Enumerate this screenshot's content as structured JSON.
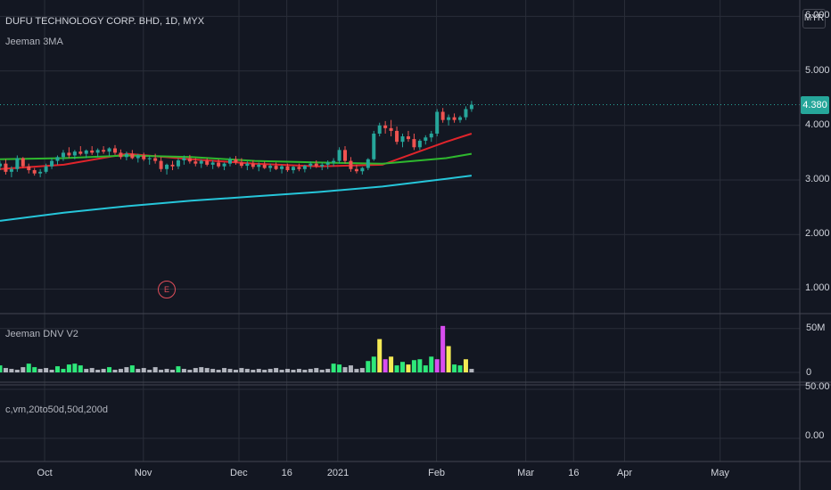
{
  "header": {
    "symbol_title": "DUFU TECHNOLOGY CORP. BHD, 1D, MYX",
    "main_indicator": "Jeeman 3MA",
    "currency": "MYR"
  },
  "price_axis": {
    "labels": [
      "6.000",
      "5.000",
      "4.000",
      "3.000",
      "2.000",
      "1.000"
    ],
    "values": [
      6,
      5,
      4,
      3,
      2,
      1
    ],
    "last_price": "4.380",
    "last_price_value": 4.38
  },
  "volume_pane": {
    "title": "Jeeman DNV V2",
    "axis_labels": [
      "50M",
      "0"
    ]
  },
  "third_pane": {
    "title": "c,vm,20to50d,50d,200d",
    "axis_labels": [
      "50.00",
      "0.00"
    ]
  },
  "time_axis": {
    "labels": [
      "Oct",
      "Nov",
      "Dec",
      "16",
      "2021",
      "Feb",
      "Mar",
      "16",
      "Apr",
      "May"
    ]
  },
  "earnings_marker": "E",
  "colors": {
    "background": "#131722",
    "grid": "#2a2e39",
    "up_candle": "#26a69a",
    "down_candle": "#ef5350",
    "ma_fast": "#e0242b",
    "ma_mid": "#2eb82e",
    "ma_slow": "#26c6da",
    "last_price": "#26a69a",
    "vol_gray": "#b2b5be",
    "vol_green": "#2ee87a",
    "vol_yellow": "#f5ea55",
    "vol_magenta": "#d94df0",
    "pane_separator": "#434651"
  },
  "chart_data": {
    "type": "candlestick",
    "title": "DUFU TECHNOLOGY CORP. BHD, 1D, MYX",
    "ylim": [
      0.55,
      6.3
    ],
    "x_range": [
      "2020-09-17",
      "2021-05-26"
    ],
    "candle_dates": [
      "2020-09-17",
      "2021-02-12"
    ],
    "candles": [
      [
        3.25,
        3.35,
        3.18,
        3.3
      ],
      [
        3.3,
        3.38,
        3.1,
        3.15
      ],
      [
        3.15,
        3.25,
        3.05,
        3.2
      ],
      [
        3.2,
        3.45,
        3.15,
        3.4
      ],
      [
        3.4,
        3.42,
        3.22,
        3.25
      ],
      [
        3.25,
        3.3,
        3.12,
        3.18
      ],
      [
        3.18,
        3.22,
        3.08,
        3.12
      ],
      [
        3.12,
        3.2,
        3.05,
        3.15
      ],
      [
        3.15,
        3.3,
        3.12,
        3.25
      ],
      [
        3.25,
        3.4,
        3.2,
        3.35
      ],
      [
        3.35,
        3.45,
        3.28,
        3.42
      ],
      [
        3.42,
        3.55,
        3.35,
        3.5
      ],
      [
        3.5,
        3.6,
        3.4,
        3.45
      ],
      [
        3.45,
        3.55,
        3.38,
        3.52
      ],
      [
        3.52,
        3.62,
        3.45,
        3.48
      ],
      [
        3.48,
        3.56,
        3.4,
        3.54
      ],
      [
        3.54,
        3.62,
        3.46,
        3.5
      ],
      [
        3.5,
        3.58,
        3.42,
        3.55
      ],
      [
        3.55,
        3.62,
        3.48,
        3.52
      ],
      [
        3.52,
        3.6,
        3.44,
        3.58
      ],
      [
        3.58,
        3.64,
        3.46,
        3.5
      ],
      [
        3.5,
        3.56,
        3.38,
        3.42
      ],
      [
        3.42,
        3.52,
        3.36,
        3.48
      ],
      [
        3.48,
        3.55,
        3.38,
        3.4
      ],
      [
        3.4,
        3.48,
        3.32,
        3.45
      ],
      [
        3.45,
        3.5,
        3.35,
        3.38
      ],
      [
        3.38,
        3.44,
        3.28,
        3.4
      ],
      [
        3.4,
        3.48,
        3.3,
        3.35
      ],
      [
        3.35,
        3.42,
        3.15,
        3.2
      ],
      [
        3.2,
        3.3,
        3.1,
        3.28
      ],
      [
        3.28,
        3.35,
        3.18,
        3.25
      ],
      [
        3.25,
        3.4,
        3.2,
        3.36
      ],
      [
        3.36,
        3.45,
        3.28,
        3.4
      ],
      [
        3.4,
        3.46,
        3.3,
        3.34
      ],
      [
        3.34,
        3.4,
        3.25,
        3.3
      ],
      [
        3.3,
        3.38,
        3.22,
        3.35
      ],
      [
        3.35,
        3.4,
        3.25,
        3.28
      ],
      [
        3.28,
        3.36,
        3.2,
        3.32
      ],
      [
        3.32,
        3.38,
        3.22,
        3.25
      ],
      [
        3.25,
        3.32,
        3.18,
        3.3
      ],
      [
        3.3,
        3.42,
        3.25,
        3.38
      ],
      [
        3.38,
        3.44,
        3.28,
        3.32
      ],
      [
        3.32,
        3.4,
        3.22,
        3.26
      ],
      [
        3.26,
        3.34,
        3.18,
        3.3
      ],
      [
        3.3,
        3.36,
        3.2,
        3.24
      ],
      [
        3.24,
        3.32,
        3.16,
        3.28
      ],
      [
        3.28,
        3.34,
        3.2,
        3.22
      ],
      [
        3.22,
        3.3,
        3.15,
        3.26
      ],
      [
        3.26,
        3.32,
        3.18,
        3.2
      ],
      [
        3.2,
        3.28,
        3.12,
        3.25
      ],
      [
        3.25,
        3.3,
        3.15,
        3.18
      ],
      [
        3.18,
        3.26,
        3.12,
        3.24
      ],
      [
        3.24,
        3.3,
        3.16,
        3.2
      ],
      [
        3.2,
        3.28,
        3.14,
        3.26
      ],
      [
        3.26,
        3.34,
        3.2,
        3.3
      ],
      [
        3.3,
        3.36,
        3.22,
        3.25
      ],
      [
        3.25,
        3.32,
        3.18,
        3.28
      ],
      [
        3.28,
        3.36,
        3.2,
        3.32
      ],
      [
        3.32,
        3.4,
        3.25,
        3.35
      ],
      [
        3.35,
        3.6,
        3.3,
        3.55
      ],
      [
        3.55,
        3.62,
        3.3,
        3.35
      ],
      [
        3.35,
        3.42,
        3.15,
        3.2
      ],
      [
        3.2,
        3.28,
        3.12,
        3.16
      ],
      [
        3.16,
        3.24,
        3.1,
        3.22
      ],
      [
        3.22,
        3.4,
        3.18,
        3.38
      ],
      [
        3.38,
        3.9,
        3.35,
        3.85
      ],
      [
        3.85,
        4.05,
        3.8,
        4.0
      ],
      [
        4.0,
        4.08,
        3.85,
        3.95
      ],
      [
        3.95,
        4.1,
        3.8,
        3.9
      ],
      [
        3.9,
        3.98,
        3.65,
        3.7
      ],
      [
        3.7,
        3.85,
        3.6,
        3.8
      ],
      [
        3.8,
        3.9,
        3.7,
        3.75
      ],
      [
        3.75,
        3.85,
        3.55,
        3.6
      ],
      [
        3.6,
        3.75,
        3.55,
        3.72
      ],
      [
        3.72,
        3.82,
        3.65,
        3.78
      ],
      [
        3.78,
        3.9,
        3.7,
        3.85
      ],
      [
        3.85,
        4.3,
        3.8,
        4.25
      ],
      [
        4.25,
        4.32,
        4.05,
        4.1
      ],
      [
        4.1,
        4.2,
        4.0,
        4.15
      ],
      [
        4.15,
        4.22,
        4.05,
        4.1
      ],
      [
        4.1,
        4.18,
        4.05,
        4.15
      ],
      [
        4.15,
        4.35,
        4.1,
        4.3
      ],
      [
        4.3,
        4.45,
        4.25,
        4.38
      ]
    ],
    "moving_averages": [
      {
        "color": "#e0242b",
        "points": [
          [
            "2020-09-17",
            3.2
          ],
          [
            "2020-10-07",
            3.28
          ],
          [
            "2020-10-27",
            3.48
          ],
          [
            "2020-11-16",
            3.38
          ],
          [
            "2020-12-06",
            3.3
          ],
          [
            "2020-12-26",
            3.25
          ],
          [
            "2021-01-15",
            3.28
          ],
          [
            "2021-02-04",
            3.7
          ],
          [
            "2021-02-12",
            3.85
          ]
        ]
      },
      {
        "color": "#2eb82e",
        "points": [
          [
            "2020-09-17",
            3.38
          ],
          [
            "2020-10-07",
            3.4
          ],
          [
            "2020-10-27",
            3.45
          ],
          [
            "2020-11-16",
            3.42
          ],
          [
            "2020-12-06",
            3.35
          ],
          [
            "2020-12-26",
            3.32
          ],
          [
            "2021-01-15",
            3.3
          ],
          [
            "2021-02-04",
            3.4
          ],
          [
            "2021-02-12",
            3.48
          ]
        ]
      },
      {
        "color": "#26c6da",
        "points": [
          [
            "2020-09-17",
            2.25
          ],
          [
            "2020-10-07",
            2.4
          ],
          [
            "2020-10-27",
            2.52
          ],
          [
            "2020-11-16",
            2.62
          ],
          [
            "2020-12-06",
            2.7
          ],
          [
            "2020-12-26",
            2.78
          ],
          [
            "2021-01-15",
            2.88
          ],
          [
            "2021-02-04",
            3.02
          ],
          [
            "2021-02-12",
            3.08
          ]
        ]
      }
    ],
    "volume": {
      "unit": "M",
      "ylim": [
        0,
        62
      ],
      "values": [
        8,
        5,
        4,
        3,
        6,
        10,
        6,
        4,
        5,
        3,
        7,
        4,
        9,
        10,
        8,
        4,
        5,
        3,
        4,
        6,
        3,
        4,
        6,
        8,
        4,
        5,
        3,
        6,
        3,
        4,
        3,
        7,
        4,
        3,
        5,
        6,
        5,
        4,
        3,
        5,
        4,
        3,
        5,
        4,
        3,
        4,
        3,
        4,
        5,
        3,
        4,
        3,
        4,
        3,
        4,
        5,
        3,
        4,
        10,
        9,
        6,
        8,
        4,
        5,
        13,
        18,
        38,
        15,
        18,
        8,
        12,
        9,
        14,
        15,
        8,
        18,
        15,
        53,
        30,
        9,
        8,
        15,
        4
      ],
      "colors": [
        "g",
        "t",
        "t",
        "t",
        "t",
        "g",
        "g",
        "t",
        "t",
        "t",
        "g",
        "g",
        "g",
        "g",
        "g",
        "t",
        "t",
        "t",
        "t",
        "g",
        "t",
        "t",
        "t",
        "g",
        "t",
        "t",
        "t",
        "t",
        "t",
        "t",
        "t",
        "g",
        "t",
        "t",
        "t",
        "t",
        "t",
        "t",
        "t",
        "t",
        "t",
        "t",
        "t",
        "t",
        "t",
        "t",
        "t",
        "t",
        "t",
        "t",
        "t",
        "t",
        "t",
        "t",
        "t",
        "t",
        "t",
        "t",
        "g",
        "g",
        "t",
        "t",
        "t",
        "t",
        "g",
        "g",
        "y",
        "m",
        "y",
        "g",
        "g",
        "y",
        "g",
        "g",
        "g",
        "g",
        "m",
        "m",
        "y",
        "g",
        "g",
        "y",
        "t"
      ]
    },
    "vol_axis_ticks": [
      50,
      0
    ],
    "third_axis_ticks": [
      50,
      0
    ],
    "time_ticks": [
      {
        "date": "2020-10-01",
        "label": "Oct"
      },
      {
        "date": "2020-11-01",
        "label": "Nov"
      },
      {
        "date": "2020-12-01",
        "label": "Dec"
      },
      {
        "date": "2020-12-16",
        "label": "16"
      },
      {
        "date": "2021-01-01",
        "label": "2021"
      },
      {
        "date": "2021-02-01",
        "label": "Feb"
      },
      {
        "date": "2021-03-01",
        "label": "Mar"
      },
      {
        "date": "2021-03-16",
        "label": "16"
      },
      {
        "date": "2021-04-01",
        "label": "Apr"
      },
      {
        "date": "2021-05-01",
        "label": "May"
      }
    ]
  }
}
